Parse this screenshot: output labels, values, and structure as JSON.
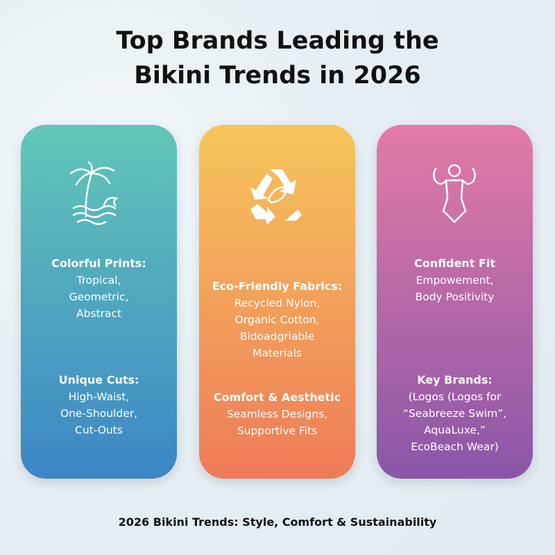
{
  "title": [
    "Top Brands Leading the",
    "Bikini Trends in 2026"
  ],
  "columns": [
    {
      "sections": [
        {
          "heading": "Colorful Prints:",
          "lines": [
            "Tropical,",
            "Geometric,",
            "Abstract"
          ]
        },
        {
          "heading": "Unique Cuts:",
          "lines": [
            "High-Waist,",
            "One-Shoulder,",
            "Cut-Outs"
          ]
        }
      ]
    },
    {
      "sections": [
        {
          "heading": "Eco-Friendly Fabrics:",
          "lines": [
            "Recycled Nylon,",
            "Organic Cotton,",
            "Bidoadgriable",
            "Materials"
          ]
        },
        {
          "heading": "Comfort & Aesthetic",
          "lines": [
            "Seamless Designs,",
            "Supportive Fits"
          ]
        }
      ]
    },
    {
      "sections": [
        {
          "heading": "Confident Fit",
          "lines": [
            "Empowement,",
            "Body Positivity"
          ]
        },
        {
          "heading": "Key Brands:",
          "lines": [
            "(Logos (Logos for",
            "“Seabreeze Swim”,",
            "AquaLuxe,”",
            "EcoBeach Wear)"
          ]
        }
      ]
    }
  ],
  "footer": "2026 Bikini Trends: Style, Comfort & Sustainability"
}
